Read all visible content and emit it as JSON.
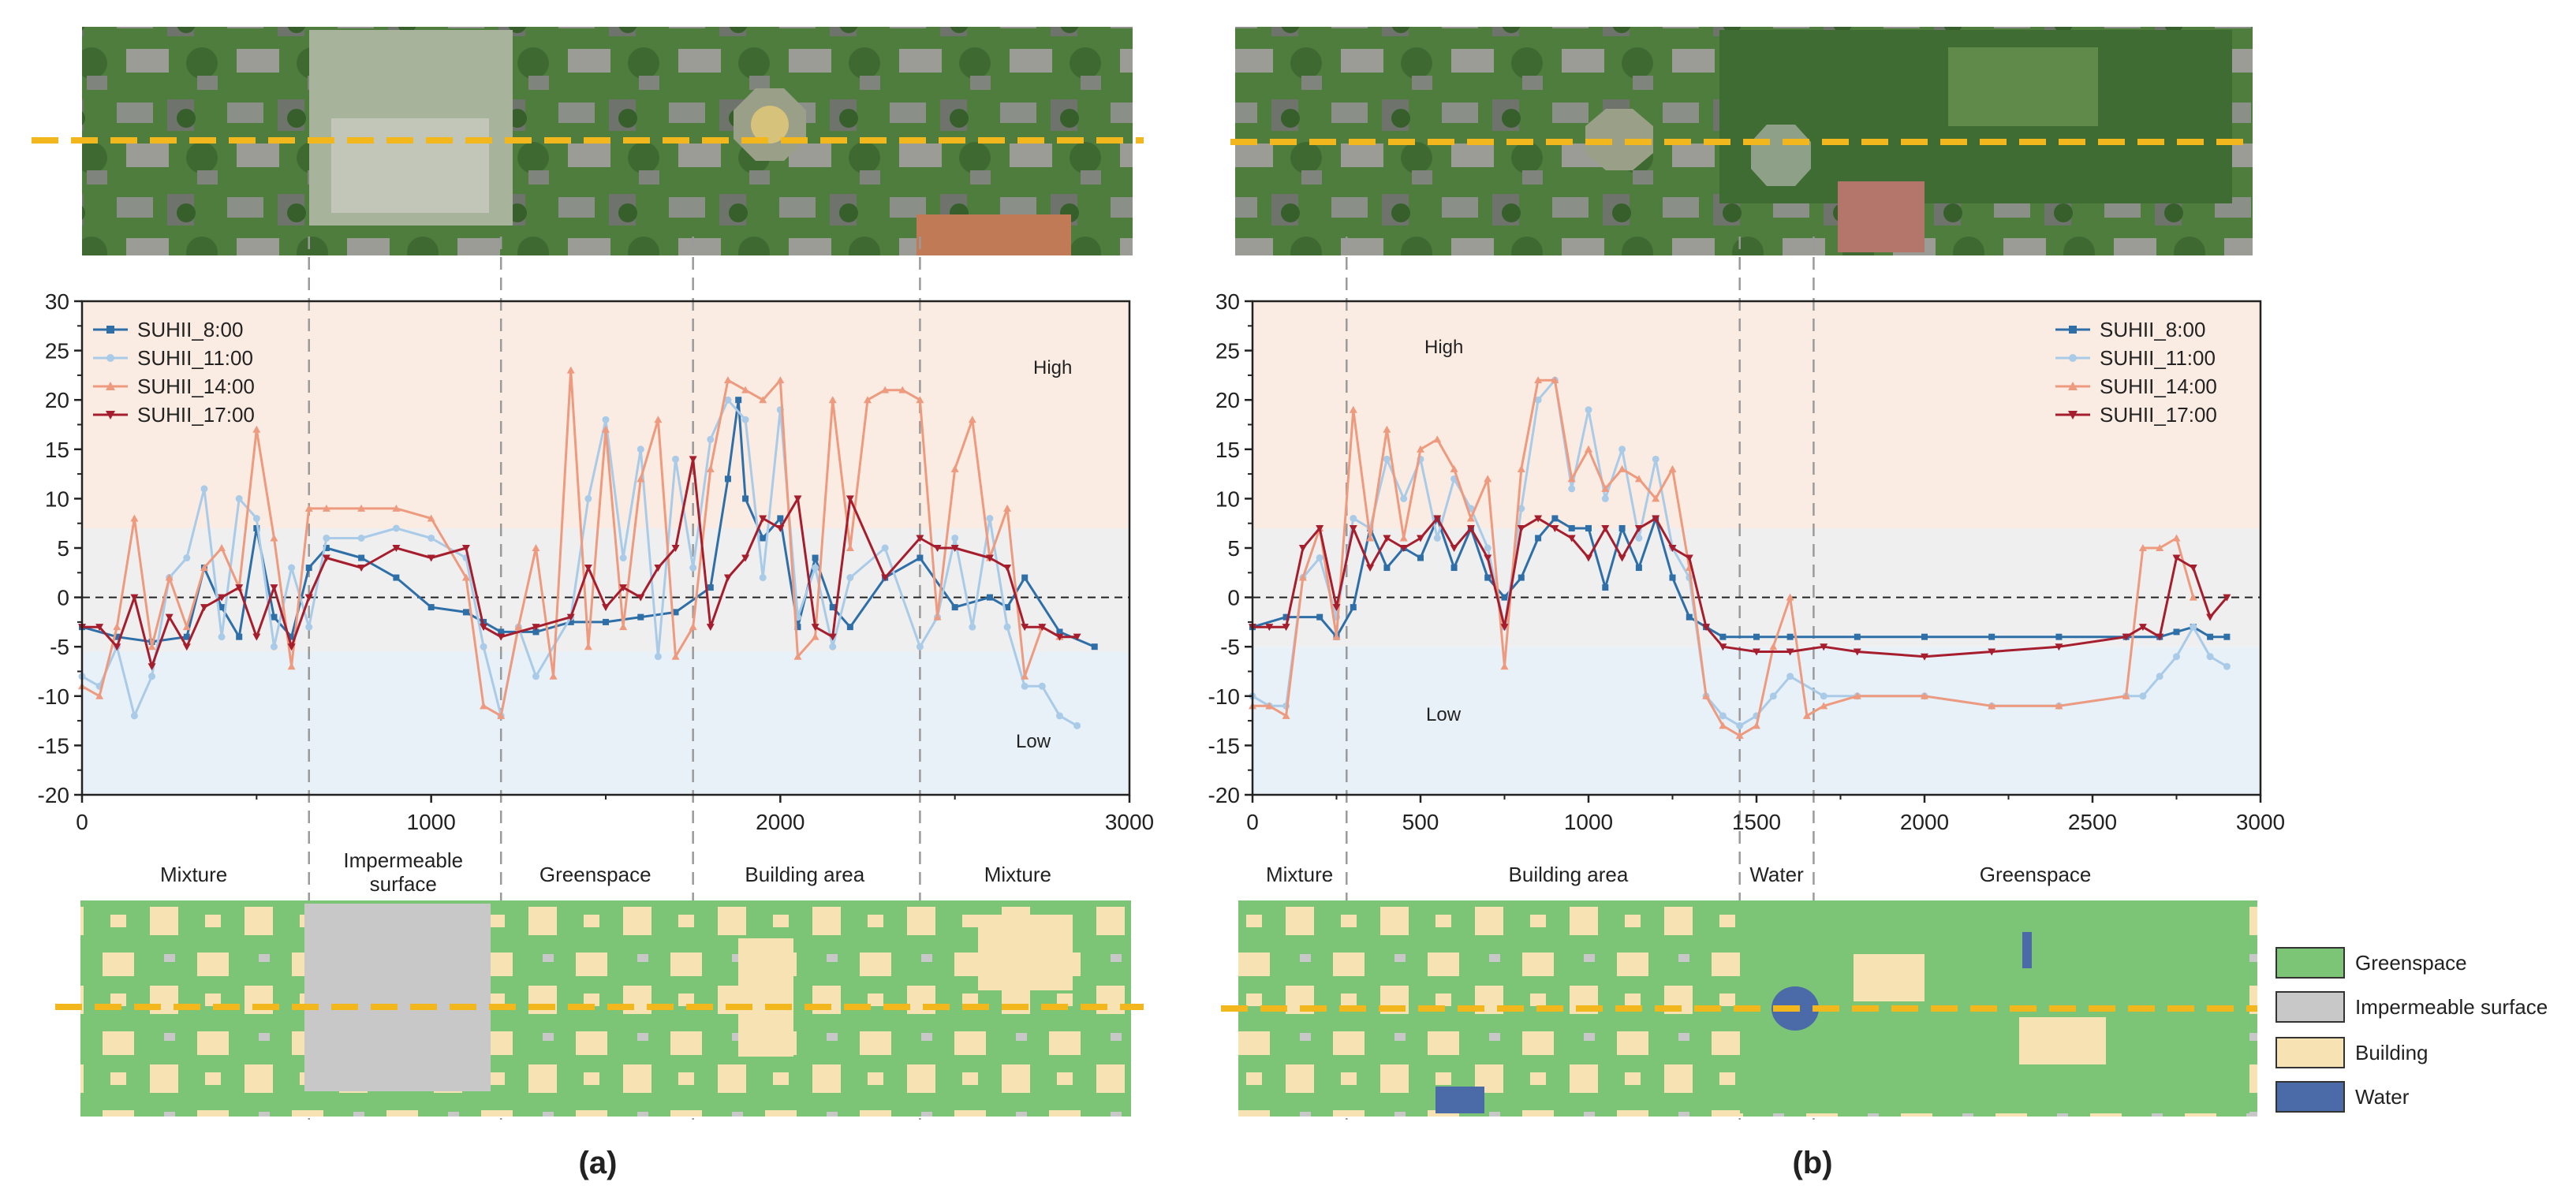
{
  "colors": {
    "s8": "#2f6fa8",
    "s11": "#a9cbe8",
    "s14": "#ee9a7f",
    "s17": "#a61e2d",
    "high_bg": "#fbece3",
    "mid_bg": "#efefef",
    "low_bg": "#e8f0f8",
    "green": "#7cc576",
    "imperm": "#c8c8c8",
    "building": "#f7e2b4",
    "water": "#4a6aa8",
    "aerial_green": "#4f7d3e",
    "aerial_roof": "#8a8f87",
    "transect": "#f2b71c"
  },
  "labels": {
    "panel_a": "(a)",
    "panel_b": "(b)",
    "high": "High",
    "low": "Low"
  },
  "legend": {
    "greenspace": "Greenspace",
    "impermeable": "Impermeable surface",
    "building": "Building",
    "water": "Water"
  },
  "chart_data": [
    {
      "type": "line",
      "panel": "a",
      "xlim": [
        0,
        3000
      ],
      "ylim": [
        -20,
        30
      ],
      "xticks": [
        0,
        1000,
        2000,
        3000
      ],
      "yticks": [
        -20,
        -15,
        -10,
        -5,
        0,
        5,
        10,
        15,
        20,
        25,
        30
      ],
      "zones": {
        "high_from": 7,
        "low_to": -5.5
      },
      "boundaries": [
        650,
        1200,
        1750,
        2400
      ],
      "regions": [
        {
          "label": "Mixture",
          "x": 320
        },
        {
          "label": "Impermeable",
          "label2": "surface",
          "x": 920
        },
        {
          "label": "Greenspace",
          "x": 1470
        },
        {
          "label": "Building area",
          "x": 2070
        },
        {
          "label": "Mixture",
          "x": 2680
        }
      ],
      "legend_position": "top-left",
      "series": [
        {
          "name": "SUHII_8:00",
          "key": "s8",
          "marker": "square",
          "x": [
            0,
            100,
            200,
            300,
            350,
            400,
            450,
            500,
            550,
            600,
            650,
            700,
            800,
            900,
            1000,
            1100,
            1150,
            1200,
            1300,
            1400,
            1500,
            1600,
            1700,
            1800,
            1850,
            1880,
            1900,
            1950,
            2000,
            2050,
            2100,
            2150,
            2200,
            2300,
            2400,
            2500,
            2600,
            2650,
            2700,
            2800,
            2900
          ],
          "y": [
            -3,
            -4,
            -4.5,
            -4,
            3,
            -1,
            -4,
            7,
            -2,
            -4,
            3,
            5,
            4,
            2,
            -1,
            -1.5,
            -2.5,
            -3.5,
            -3.5,
            -2.5,
            -2.5,
            -2,
            -1.5,
            1,
            12,
            20,
            10,
            6,
            8,
            -3,
            4,
            -1,
            -3,
            2,
            4,
            -1,
            0,
            -1,
            2,
            -3.5,
            -5
          ]
        },
        {
          "name": "SUHII_11:00",
          "key": "s11",
          "marker": "circle",
          "x": [
            0,
            50,
            100,
            150,
            200,
            250,
            300,
            350,
            400,
            450,
            500,
            550,
            600,
            650,
            700,
            800,
            900,
            1000,
            1100,
            1150,
            1200,
            1250,
            1300,
            1400,
            1450,
            1500,
            1550,
            1600,
            1650,
            1700,
            1750,
            1800,
            1850,
            1900,
            1950,
            2000,
            2050,
            2100,
            2150,
            2200,
            2300,
            2400,
            2450,
            2500,
            2550,
            2600,
            2650,
            2700,
            2750,
            2800,
            2850
          ],
          "y": [
            -8,
            -9,
            -5,
            -12,
            -8,
            2,
            4,
            11,
            -4,
            10,
            8,
            -5,
            3,
            -3,
            6,
            6,
            7,
            6,
            4,
            -5,
            -12,
            -3,
            -8,
            -2,
            10,
            18,
            4,
            15,
            -6,
            14,
            3,
            16,
            20,
            18,
            2,
            19,
            -2,
            3,
            -5,
            2,
            5,
            -5,
            -2,
            6,
            -3,
            8,
            -3,
            -9,
            -9,
            -12,
            -13
          ]
        },
        {
          "name": "SUHII_14:00",
          "key": "s14",
          "marker": "triangle",
          "x": [
            0,
            50,
            100,
            150,
            200,
            250,
            300,
            350,
            400,
            450,
            500,
            550,
            600,
            650,
            700,
            800,
            900,
            1000,
            1100,
            1150,
            1200,
            1250,
            1300,
            1350,
            1400,
            1450,
            1500,
            1550,
            1600,
            1650,
            1700,
            1750,
            1800,
            1850,
            1900,
            1950,
            2000,
            2050,
            2100,
            2150,
            2200,
            2250,
            2300,
            2350,
            2400,
            2450,
            2500,
            2550,
            2600,
            2650,
            2700,
            2750,
            2800
          ],
          "y": [
            -9,
            -10,
            -3,
            8,
            -5,
            2,
            -3,
            3,
            5,
            1,
            17,
            6,
            -7,
            9,
            9,
            9,
            9,
            8,
            2,
            -11,
            -12,
            -3,
            5,
            -8,
            23,
            -5,
            17,
            -3,
            12,
            18,
            -6,
            -3,
            13,
            22,
            21,
            20,
            22,
            -6,
            -4,
            20,
            5,
            20,
            21,
            21,
            20,
            -2,
            13,
            18,
            4,
            9,
            -8,
            -3,
            -4
          ]
        },
        {
          "name": "SUHII_17:00",
          "key": "s17",
          "marker": "down-triangle",
          "x": [
            0,
            50,
            100,
            150,
            200,
            250,
            300,
            350,
            400,
            450,
            500,
            550,
            600,
            650,
            700,
            800,
            900,
            1000,
            1100,
            1150,
            1200,
            1300,
            1400,
            1450,
            1500,
            1550,
            1600,
            1650,
            1700,
            1750,
            1800,
            1850,
            1900,
            1950,
            2000,
            2050,
            2100,
            2150,
            2200,
            2300,
            2400,
            2450,
            2500,
            2600,
            2650,
            2700,
            2750,
            2800,
            2850
          ],
          "y": [
            -3,
            -3,
            -5,
            0,
            -7,
            -2,
            -5,
            -1,
            0,
            1,
            -4,
            1,
            -5,
            0,
            4,
            3,
            5,
            4,
            5,
            -3,
            -4,
            -3,
            -2,
            3,
            -1,
            1,
            0,
            3,
            5,
            14,
            -3,
            2,
            4,
            8,
            7,
            10,
            -3,
            -4,
            10,
            2,
            6,
            5,
            5,
            4,
            3,
            -3,
            -3,
            -4,
            -4
          ]
        }
      ]
    },
    {
      "type": "line",
      "panel": "b",
      "xlim": [
        0,
        3000
      ],
      "ylim": [
        -20,
        30
      ],
      "xticks": [
        0,
        500,
        1000,
        1500,
        2000,
        2500,
        3000
      ],
      "yticks": [
        -20,
        -15,
        -10,
        -5,
        0,
        5,
        10,
        15,
        20,
        25,
        30
      ],
      "zones": {
        "high_from": 7,
        "low_to": -5
      },
      "boundaries": [
        280,
        1450,
        1670
      ],
      "regions": [
        {
          "label": "Mixture",
          "x": 140
        },
        {
          "label": "Building area",
          "x": 940
        },
        {
          "label": "Water",
          "x": 1560
        },
        {
          "label": "Greenspace",
          "x": 2330
        }
      ],
      "legend_position": "top-right",
      "series": [
        {
          "name": "SUHII_8:00",
          "key": "s8",
          "marker": "square",
          "x": [
            0,
            100,
            200,
            250,
            300,
            350,
            400,
            450,
            500,
            550,
            600,
            650,
            700,
            750,
            800,
            850,
            900,
            950,
            1000,
            1050,
            1100,
            1150,
            1200,
            1250,
            1300,
            1350,
            1400,
            1500,
            1600,
            1800,
            2000,
            2200,
            2400,
            2600,
            2700,
            2750,
            2800,
            2850,
            2900
          ],
          "y": [
            -3,
            -2,
            -2,
            -4,
            -1,
            7,
            3,
            5,
            4,
            8,
            3,
            7,
            2,
            0,
            2,
            6,
            8,
            7,
            7,
            1,
            7,
            3,
            8,
            2,
            -2,
            -3,
            -4,
            -4,
            -4,
            -4,
            -4,
            -4,
            -4,
            -4,
            -4,
            -3.5,
            -3,
            -4,
            -4
          ]
        },
        {
          "name": "SUHII_11:00",
          "key": "s11",
          "marker": "circle",
          "x": [
            0,
            50,
            100,
            150,
            200,
            250,
            300,
            350,
            400,
            450,
            500,
            550,
            600,
            650,
            700,
            750,
            800,
            850,
            900,
            950,
            1000,
            1050,
            1100,
            1150,
            1200,
            1250,
            1300,
            1350,
            1400,
            1450,
            1500,
            1550,
            1600,
            1700,
            1800,
            2000,
            2200,
            2400,
            2600,
            2650,
            2700,
            2750,
            2800,
            2850,
            2900
          ],
          "y": [
            -10,
            -11,
            -11,
            2,
            4,
            -2,
            8,
            7,
            14,
            10,
            14,
            6,
            12,
            9,
            5,
            -3,
            9,
            20,
            22,
            11,
            19,
            10,
            15,
            6,
            14,
            5,
            2,
            -10,
            -12,
            -13,
            -12,
            -10,
            -8,
            -10,
            -10,
            -10,
            -11,
            -11,
            -10,
            -10,
            -8,
            -6,
            -3,
            -6,
            -7
          ]
        },
        {
          "name": "SUHII_14:00",
          "key": "s14",
          "marker": "triangle",
          "x": [
            0,
            50,
            100,
            150,
            200,
            250,
            300,
            350,
            400,
            450,
            500,
            550,
            600,
            650,
            700,
            750,
            800,
            850,
            900,
            950,
            1000,
            1050,
            1100,
            1150,
            1200,
            1250,
            1300,
            1350,
            1400,
            1450,
            1500,
            1550,
            1600,
            1650,
            1700,
            1800,
            2000,
            2200,
            2400,
            2600,
            2650,
            2700,
            2750,
            2800
          ],
          "y": [
            -11,
            -11,
            -12,
            2,
            7,
            -4,
            19,
            6,
            17,
            6,
            15,
            16,
            13,
            8,
            12,
            -7,
            13,
            22,
            22,
            12,
            15,
            11,
            13,
            12,
            10,
            13,
            3,
            -10,
            -13,
            -14,
            -13,
            -5,
            0,
            -12,
            -11,
            -10,
            -10,
            -11,
            -11,
            -10,
            5,
            5,
            6,
            0
          ]
        },
        {
          "name": "SUHII_17:00",
          "key": "s17",
          "marker": "down-triangle",
          "x": [
            0,
            50,
            100,
            150,
            200,
            250,
            300,
            350,
            400,
            450,
            500,
            550,
            600,
            650,
            700,
            750,
            800,
            850,
            900,
            950,
            1000,
            1050,
            1100,
            1150,
            1200,
            1250,
            1300,
            1350,
            1400,
            1500,
            1600,
            1700,
            1800,
            2000,
            2200,
            2400,
            2600,
            2650,
            2700,
            2750,
            2800,
            2850,
            2900
          ],
          "y": [
            -3,
            -3,
            -3,
            5,
            7,
            -1,
            7,
            3,
            6,
            5,
            6,
            8,
            5,
            7,
            4,
            -3,
            7,
            8,
            7,
            6,
            4,
            7,
            4,
            7,
            8,
            5,
            4,
            -3,
            -5,
            -5.5,
            -5.5,
            -5,
            -5.5,
            -6,
            -5.5,
            -5,
            -4,
            -3,
            -4,
            4,
            3,
            -2,
            0
          ]
        }
      ]
    }
  ]
}
